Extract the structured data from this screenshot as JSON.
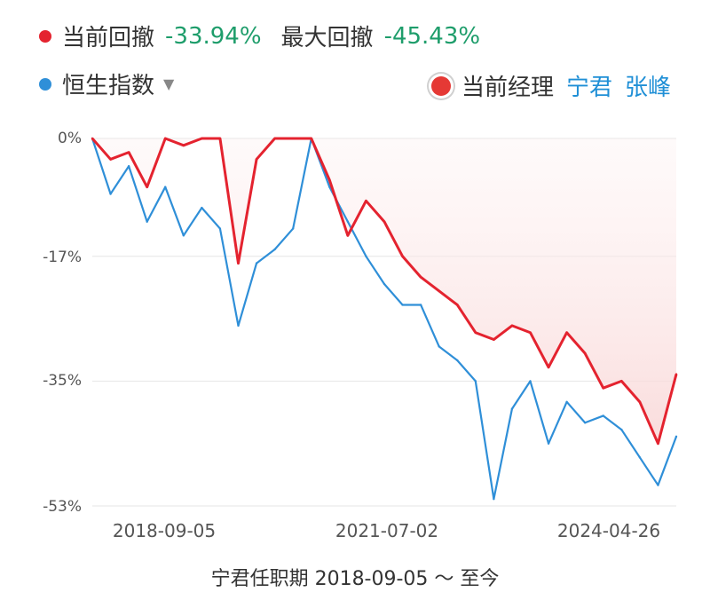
{
  "legend": {
    "current_drawdown_label": "当前回撤",
    "current_drawdown_value": "-33.94%",
    "max_drawdown_label": "最大回撤",
    "max_drawdown_value": "-45.43%",
    "benchmark_label": "恒生指数",
    "manager_label": "当前经理",
    "manager_names": [
      "宁君",
      "张峰"
    ]
  },
  "colors": {
    "fund": "#e4232f",
    "index": "#2f8fd8",
    "positive": "#1e9d6b",
    "fill": "#fbe3e3"
  },
  "footer": "宁君任职期 2018-09-05 ～ 至今",
  "chart_data": {
    "type": "line",
    "ylabel": "",
    "xlabel": "",
    "y_ticks": [
      "0%",
      "-17%",
      "-35%",
      "-53%"
    ],
    "ylim": [
      -53,
      0
    ],
    "x_ticks": [
      "2018-09-05",
      "2021-07-02",
      "2024-04-26"
    ],
    "x": [
      "2018-03",
      "2018-07",
      "2018-09",
      "2018-12",
      "2019-04",
      "2019-08",
      "2019-11",
      "2020-02",
      "2020-03",
      "2020-06",
      "2020-09",
      "2020-12",
      "2021-02",
      "2021-04",
      "2021-07",
      "2021-09",
      "2021-12",
      "2022-02",
      "2022-03",
      "2022-05",
      "2022-07",
      "2022-09",
      "2022-10",
      "2023-01",
      "2023-04",
      "2023-07",
      "2023-10",
      "2024-01",
      "2024-02",
      "2024-05",
      "2024-08",
      "2024-11",
      "2025-01"
    ],
    "series": [
      {
        "name": "当前回撤",
        "values": [
          0,
          -3,
          -2,
          -7,
          0,
          -1,
          0,
          0,
          -18,
          -3,
          0,
          0,
          0,
          -6,
          -14,
          -9,
          -12,
          -17,
          -20,
          -22,
          -24,
          -28,
          -29,
          -27,
          -28,
          -33,
          -28,
          -31,
          -36,
          -35,
          -38,
          -44,
          -34
        ]
      },
      {
        "name": "恒生指数",
        "values": [
          0,
          -8,
          -4,
          -12,
          -7,
          -14,
          -10,
          -13,
          -27,
          -18,
          -16,
          -13,
          0,
          -7,
          -12,
          -17,
          -21,
          -24,
          -24,
          -30,
          -32,
          -35,
          -52,
          -39,
          -35,
          -44,
          -38,
          -41,
          -40,
          -42,
          -46,
          -50,
          -43
        ]
      }
    ]
  }
}
